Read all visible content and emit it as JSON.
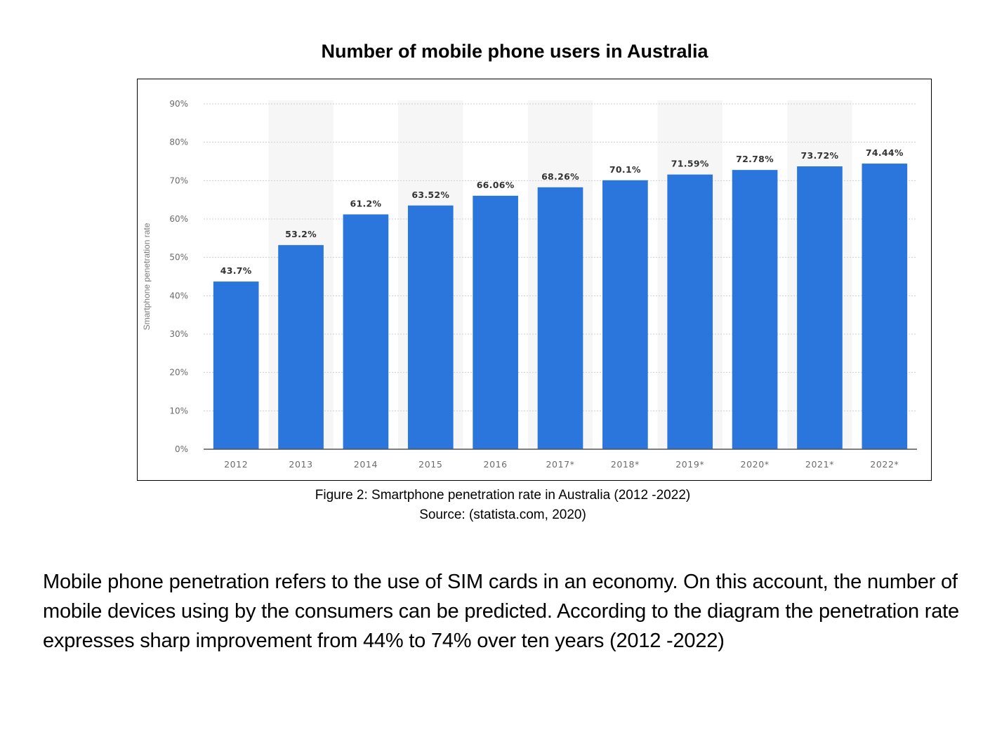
{
  "title": "Number of mobile phone users in Australia",
  "chart_data": {
    "type": "bar",
    "categories": [
      "2012",
      "2013",
      "2014",
      "2015",
      "2016",
      "2017*",
      "2018*",
      "2019*",
      "2020*",
      "2021*",
      "2022*"
    ],
    "values": [
      43.7,
      53.2,
      61.2,
      63.52,
      66.06,
      68.26,
      70.1,
      71.59,
      72.78,
      73.72,
      74.44
    ],
    "data_labels": [
      "43.7%",
      "53.2%",
      "61.2%",
      "63.52%",
      "66.06%",
      "68.26%",
      "70.1%",
      "71.59%",
      "72.78%",
      "73.72%",
      "74.44%"
    ],
    "title": "",
    "xlabel": "",
    "ylabel": "Smartphone penetration rate",
    "ylim": [
      0,
      90
    ],
    "yticks": [
      "0%",
      "10%",
      "20%",
      "30%",
      "40%",
      "50%",
      "60%",
      "70%",
      "80%",
      "90%"
    ],
    "grid": true,
    "legend": "none",
    "bar_color": "#2a76dd"
  },
  "caption": {
    "line1": "Figure 2: Smartphone penetration rate in Australia (2012 -2022)",
    "line2": "Source: (statista.com, 2020)"
  },
  "body_text": "Mobile phone penetration refers to the use of  SIM cards in an economy. On this account, the number of mobile devices  using by the  consumers can be predicted.  According to the diagram  the penetration rate  expresses sharp improvement from 44% to 74% over ten years (2012 -2022)"
}
